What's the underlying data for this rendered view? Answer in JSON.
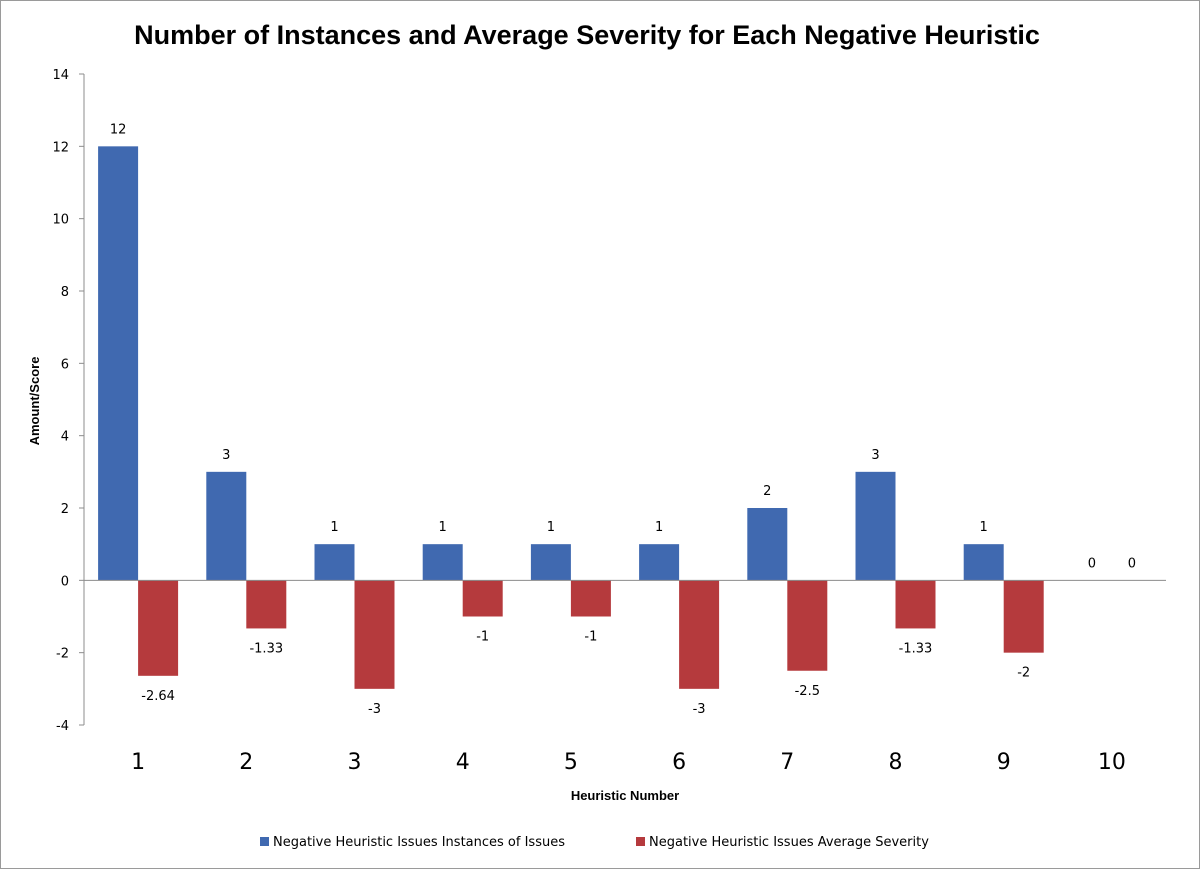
{
  "chart_data": {
    "type": "bar",
    "title": "Number of Instances and Average Severity for Each Negative Heuristic",
    "xlabel": "Heuristic Number",
    "ylabel": "Amount/Score",
    "ylim": [
      -4,
      14
    ],
    "yticks": [
      -4,
      -2,
      0,
      2,
      4,
      6,
      8,
      10,
      12,
      14
    ],
    "categories": [
      "1",
      "2",
      "3",
      "4",
      "5",
      "6",
      "7",
      "8",
      "9",
      "10"
    ],
    "grid": false,
    "legend_position": "bottom",
    "series": [
      {
        "name": "Negative Heuristic Issues Instances of Issues",
        "color": "#4069b0",
        "values": [
          12,
          3,
          1,
          1,
          1,
          1,
          2,
          3,
          1,
          0
        ],
        "labels": [
          "12",
          "3",
          "1",
          "1",
          "1",
          "1",
          "2",
          "3",
          "1",
          "0"
        ]
      },
      {
        "name": "Negative Heuristic Issues Average Severity",
        "color": "#b53a3d",
        "values": [
          -2.64,
          -1.33,
          -3,
          -1,
          -1,
          -3,
          -2.5,
          -1.33,
          -2,
          0
        ],
        "labels": [
          "-2.64",
          "-1.33",
          "-3",
          "-1",
          "-1",
          "-3",
          "-2.5",
          "-1.33",
          "-2",
          "0"
        ]
      }
    ]
  }
}
